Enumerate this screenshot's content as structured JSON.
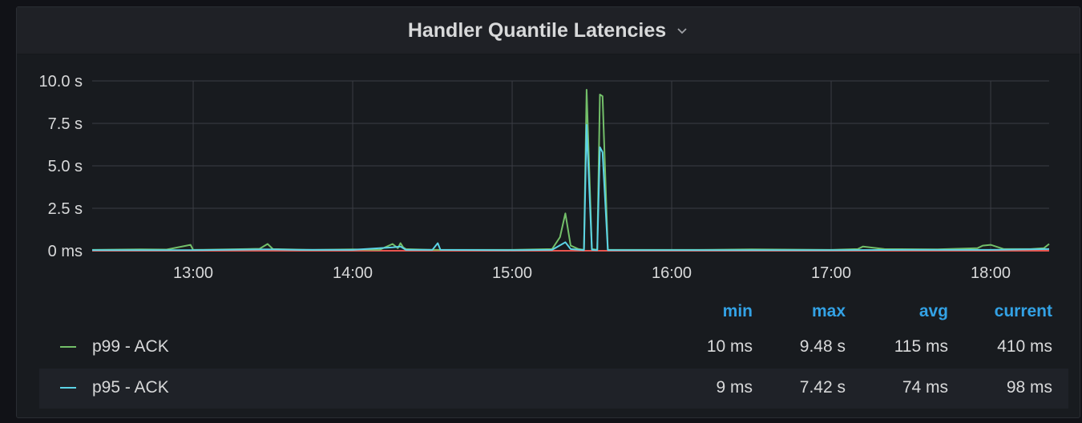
{
  "panel": {
    "title": "Handler Quantile Latencies",
    "menu_icon": "chevron-down-icon"
  },
  "legend": {
    "headers": {
      "min": "min",
      "max": "max",
      "avg": "avg",
      "current": "current"
    },
    "rows": [
      {
        "name": "p99 - ACK",
        "color": "#73bf69",
        "min": "10 ms",
        "max": "9.48 s",
        "avg": "115 ms",
        "current": "410 ms"
      },
      {
        "name": "p95 - ACK",
        "color": "#5cd3e6",
        "min": "9 ms",
        "max": "7.42 s",
        "avg": "74 ms",
        "current": "98 ms"
      }
    ]
  },
  "chart_data": {
    "type": "line",
    "x_ticks": [
      "13:00",
      "14:00",
      "15:00",
      "16:00",
      "17:00",
      "18:00"
    ],
    "y_ticks": [
      "0 ms",
      "2.5 s",
      "5.0 s",
      "7.5 s",
      "10.0 s"
    ],
    "xlim": [
      "12:22",
      "18:22"
    ],
    "ylim": [
      0,
      10
    ],
    "grid": true,
    "colors": {
      "grid": "#3a3d44",
      "baseline": "#e8544e"
    },
    "series": [
      {
        "name": "p99 - ACK",
        "color": "#73bf69",
        "points": [
          [
            "12:22",
            0.05
          ],
          [
            "12:40",
            0.08
          ],
          [
            "12:50",
            0.07
          ],
          [
            "12:59",
            0.35
          ],
          [
            "13:00",
            0.05
          ],
          [
            "13:20",
            0.1
          ],
          [
            "13:25",
            0.12
          ],
          [
            "13:28",
            0.4
          ],
          [
            "13:30",
            0.1
          ],
          [
            "13:45",
            0.05
          ],
          [
            "14:00",
            0.08
          ],
          [
            "14:10",
            0.05
          ],
          [
            "14:15",
            0.4
          ],
          [
            "14:17",
            0.15
          ],
          [
            "14:18",
            0.45
          ],
          [
            "14:19",
            0.2
          ],
          [
            "14:20",
            0.1
          ],
          [
            "14:30",
            0.05
          ],
          [
            "14:40",
            0.05
          ],
          [
            "15:00",
            0.05
          ],
          [
            "15:15",
            0.1
          ],
          [
            "15:18",
            0.8
          ],
          [
            "15:20",
            2.2
          ],
          [
            "15:22",
            0.3
          ],
          [
            "15:25",
            0.1
          ],
          [
            "15:27",
            0.05
          ],
          [
            "15:28",
            9.48
          ],
          [
            "15:30",
            0.1
          ],
          [
            "15:32",
            0.05
          ],
          [
            "15:33",
            9.2
          ],
          [
            "15:34",
            9.1
          ],
          [
            "15:36",
            0.05
          ],
          [
            "15:50",
            0.05
          ],
          [
            "16:10",
            0.05
          ],
          [
            "16:30",
            0.08
          ],
          [
            "17:00",
            0.05
          ],
          [
            "17:10",
            0.1
          ],
          [
            "17:12",
            0.25
          ],
          [
            "17:20",
            0.1
          ],
          [
            "17:40",
            0.08
          ],
          [
            "17:55",
            0.15
          ],
          [
            "17:57",
            0.3
          ],
          [
            "18:00",
            0.35
          ],
          [
            "18:05",
            0.1
          ],
          [
            "18:15",
            0.1
          ],
          [
            "18:20",
            0.15
          ],
          [
            "18:22",
            0.4
          ]
        ]
      },
      {
        "name": "p95 - ACK",
        "color": "#5cd3e6",
        "points": [
          [
            "12:22",
            0.04
          ],
          [
            "13:00",
            0.04
          ],
          [
            "13:28",
            0.08
          ],
          [
            "13:40",
            0.05
          ],
          [
            "14:00",
            0.05
          ],
          [
            "14:15",
            0.2
          ],
          [
            "14:18",
            0.25
          ],
          [
            "14:20",
            0.05
          ],
          [
            "14:30",
            0.05
          ],
          [
            "14:32",
            0.45
          ],
          [
            "14:33",
            0.05
          ],
          [
            "15:00",
            0.04
          ],
          [
            "15:15",
            0.05
          ],
          [
            "15:20",
            0.5
          ],
          [
            "15:22",
            0.1
          ],
          [
            "15:27",
            0.04
          ],
          [
            "15:28",
            7.42
          ],
          [
            "15:30",
            0.05
          ],
          [
            "15:32",
            0.04
          ],
          [
            "15:33",
            6.1
          ],
          [
            "15:34",
            5.8
          ],
          [
            "15:36",
            0.04
          ],
          [
            "16:00",
            0.04
          ],
          [
            "16:30",
            0.04
          ],
          [
            "17:00",
            0.04
          ],
          [
            "17:30",
            0.05
          ],
          [
            "18:00",
            0.05
          ],
          [
            "18:22",
            0.1
          ]
        ]
      }
    ]
  }
}
